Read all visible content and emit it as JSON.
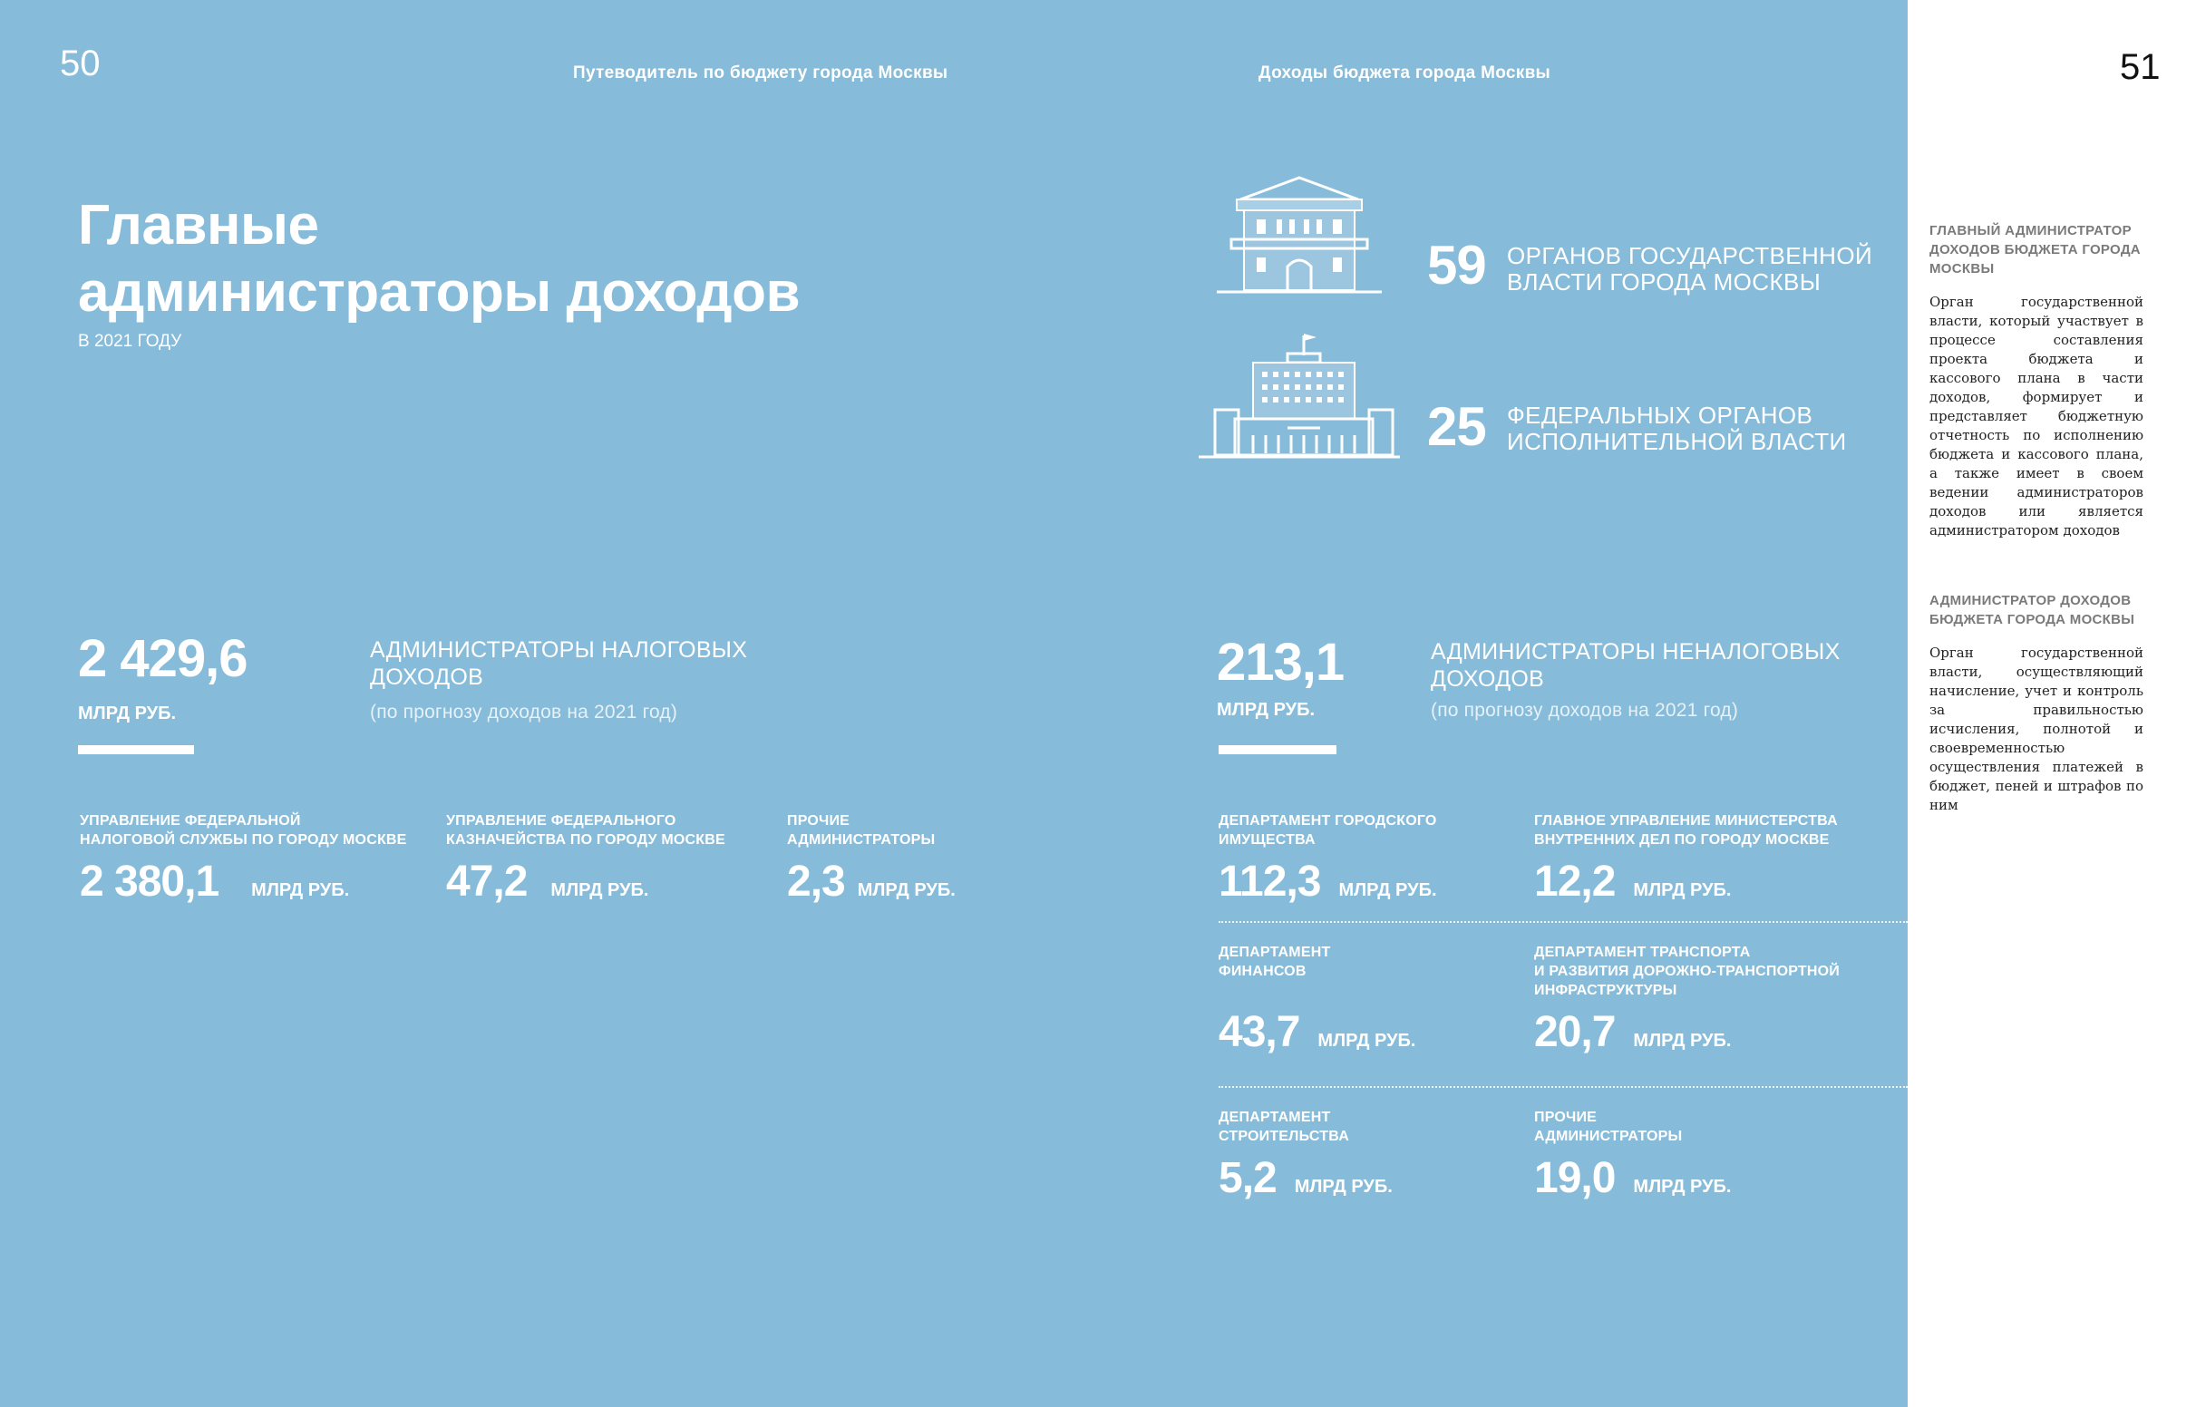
{
  "header": {
    "left_page_number": "50",
    "right_page_number": "51",
    "left_running_title": "Путеводитель по бюджету города Москвы",
    "right_running_title": "Доходы бюджета города Москвы"
  },
  "title": {
    "line1": "Главные",
    "line2": "администраторы доходов",
    "subtitle": "В 2021 ГОДУ"
  },
  "counts": [
    {
      "number": "59",
      "line1": "ОРГАНОВ  ГОСУДАРСТВЕННОЙ",
      "line2": "ВЛАСТИ ГОРОДА МОСКВЫ",
      "icon": "city-building-icon"
    },
    {
      "number": "25",
      "line1": "ФЕДЕРАЛЬНЫХ ОРГАНОВ",
      "line2": "ИСПОЛНИТЕЛЬНОЙ ВЛАСТИ",
      "icon": "federal-building-icon"
    }
  ],
  "tax": {
    "value": "2 429,6",
    "unit": "МЛРД РУБ.",
    "title_line1": "АДМИНИСТРАТОРЫ НАЛОГОВЫХ",
    "title_line2": "ДОХОДОВ",
    "forecast": "(по прогнозу доходов на 2021 год)",
    "items": [
      {
        "label1": "УПРАВЛЕНИЕ ФЕДЕРАЛЬНОЙ",
        "label2": "НАЛОГОВОЙ СЛУЖБЫ ПО ГОРОДУ МОСКВЕ",
        "value": "2 380,1",
        "unit": "МЛРД РУБ."
      },
      {
        "label1": "УПРАВЛЕНИЕ ФЕДЕРАЛЬНОГО",
        "label2": "КАЗНАЧЕЙСТВА ПО ГОРОДУ МОСКВЕ",
        "value": "47,2",
        "unit": "МЛРД РУБ."
      },
      {
        "label1": "ПРОЧИЕ",
        "label2": "АДМИНИСТРАТОРЫ",
        "value": "2,3",
        "unit": "МЛРД РУБ."
      }
    ]
  },
  "nontax": {
    "value": "213,1",
    "unit": "МЛРД РУБ.",
    "title_line1": "АДМИНИСТРАТОРЫ НЕНАЛОГОВЫХ",
    "title_line2": "ДОХОДОВ",
    "forecast": "(по прогнозу доходов на 2021 год)",
    "items": [
      {
        "label1": "ДЕПАРТАМЕНТ ГОРОДСКОГО",
        "label2": "ИМУЩЕСТВА",
        "label3": "",
        "value": "112,3",
        "unit": "МЛРД РУБ."
      },
      {
        "label1": "ГЛАВНОЕ УПРАВЛЕНИЕ МИНИСТЕРСТВА",
        "label2": "ВНУТРЕННИХ ДЕЛ ПО ГОРОДУ МОСКВЕ",
        "label3": "",
        "value": "12,2",
        "unit": "МЛРД РУБ."
      },
      {
        "label1": "ДЕПАРТАМЕНТ",
        "label2": "ФИНАНСОВ",
        "label3": "",
        "value": "43,7",
        "unit": "МЛРД РУБ."
      },
      {
        "label1": "ДЕПАРТАМЕНТ ТРАНСПОРТА",
        "label2": "И РАЗВИТИЯ ДОРОЖНО-ТРАНСПОРТНОЙ",
        "label3": "ИНФРАСТРУКТУРЫ",
        "value": "20,7",
        "unit": "МЛРД РУБ."
      },
      {
        "label1": "ДЕПАРТАМЕНТ",
        "label2": "СТРОИТЕЛЬСТВА",
        "label3": "",
        "value": "5,2",
        "unit": "МЛРД РУБ."
      },
      {
        "label1": "ПРОЧИЕ",
        "label2": "АДМИНИСТРАТОРЫ",
        "label3": "",
        "value": "19,0",
        "unit": "МЛРД РУБ."
      }
    ]
  },
  "glossary": [
    {
      "title_lines": [
        "ГЛАВНЫЙ АДМИНИСТРАТОР",
        "ДОХОДОВ БЮДЖЕТА ГОРОДА",
        "МОСКВЫ"
      ],
      "text": "Орган государственной власти, который участвует в процессе составления проекта бюджета и кассового плана в части доходов, формирует и представляет бюджетную отчетность по исполнению бюджета и кассового плана, а также имеет в своем ведении администраторов доходов или является администратором доходов"
    },
    {
      "title_lines": [
        "АДМИНИСТРАТОР ДОХОДОВ",
        "БЮДЖЕТА ГОРОДА МОСКВЫ"
      ],
      "text": "Орган государственной власти, осуществляющий начисление, учет и контроль за правильностью исчисления, полнотой и своевременностью осуществления платежей в бюджет, пеней и штрафов по ним"
    }
  ]
}
